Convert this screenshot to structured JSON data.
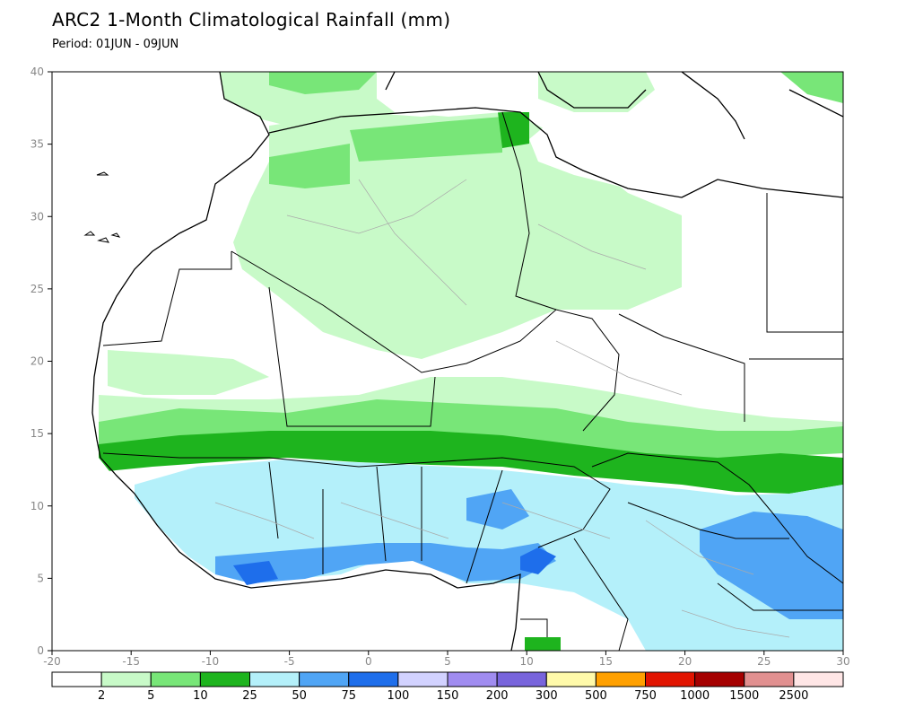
{
  "title": "ARC2 1-Month Climatological Rainfall (mm)",
  "subtitle": "Period: 01JUN - 09JUN",
  "map": {
    "lon_range": [
      -20,
      30
    ],
    "lat_range": [
      0,
      40
    ],
    "x_ticks": [
      "-20",
      "-15",
      "-10",
      "-5",
      "0",
      "5",
      "10",
      "15",
      "20",
      "25",
      "30"
    ],
    "y_ticks": [
      "0",
      "5",
      "10",
      "15",
      "20",
      "25",
      "30",
      "35",
      "40"
    ]
  },
  "colorbar": {
    "colors": [
      "#ffffff",
      "#c8fac8",
      "#78e678",
      "#1eb41e",
      "#b4f0fa",
      "#50a5f5",
      "#1e6eeb",
      "#d2d2ff",
      "#a08cf0",
      "#7864dc",
      "#fffaaa",
      "#ffa000",
      "#e11400",
      "#a50000",
      "#e19090",
      "#ffe6e6"
    ],
    "labels": [
      "2",
      "5",
      "10",
      "25",
      "50",
      "75",
      "100",
      "150",
      "200",
      "300",
      "500",
      "750",
      "1000",
      "1500",
      "2500"
    ]
  }
}
